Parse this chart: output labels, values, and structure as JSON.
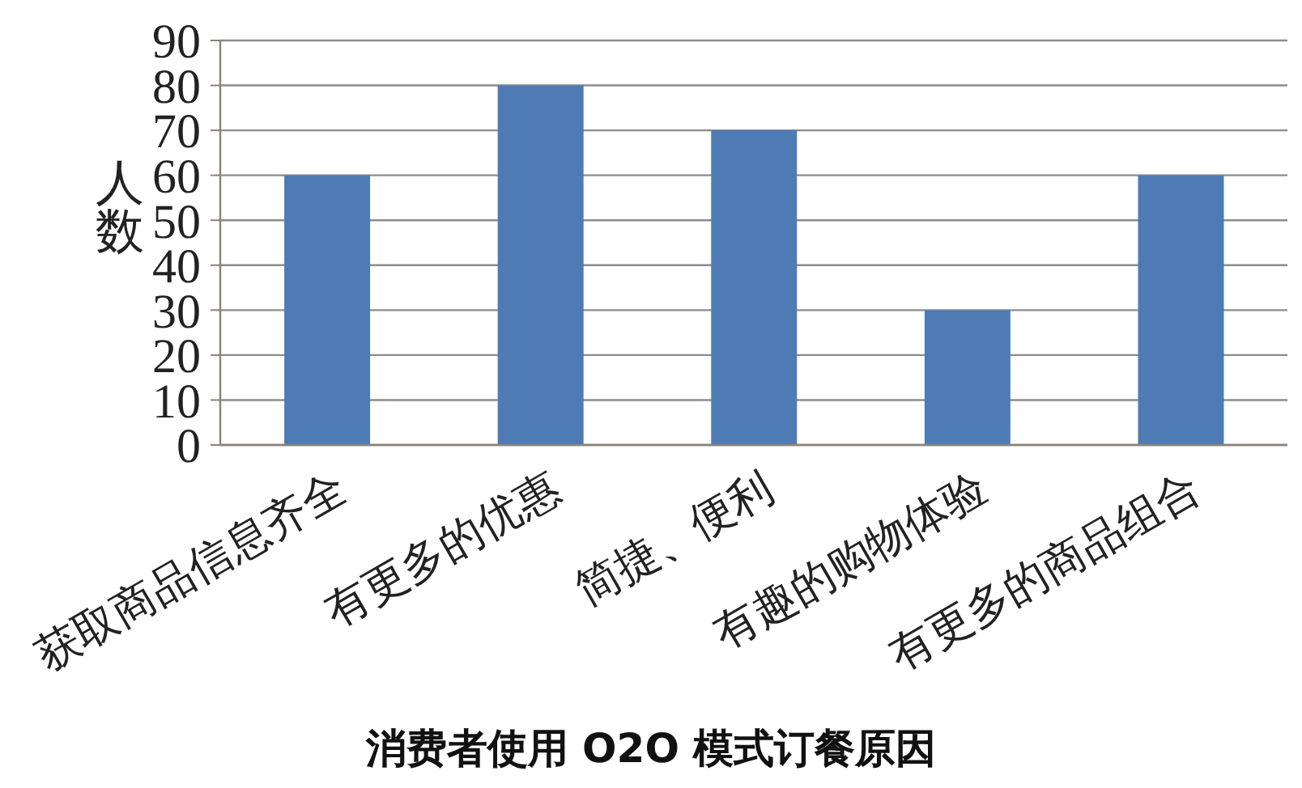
{
  "chart_data": {
    "type": "bar",
    "xlabel": "消费者使用 O2O 模式订餐原因",
    "ylabel": "人数",
    "categories": [
      "获取商品信息齐全",
      "有更多的优惠",
      "简捷、便利",
      "有趣的购物体验",
      "有更多的商品组合"
    ],
    "values": [
      60,
      80,
      70,
      30,
      60
    ],
    "color": "#4f7bb5",
    "ylim": [
      0,
      90
    ],
    "yticks": [
      0,
      10,
      20,
      30,
      40,
      50,
      60,
      70,
      80,
      90
    ],
    "grid": "y"
  }
}
